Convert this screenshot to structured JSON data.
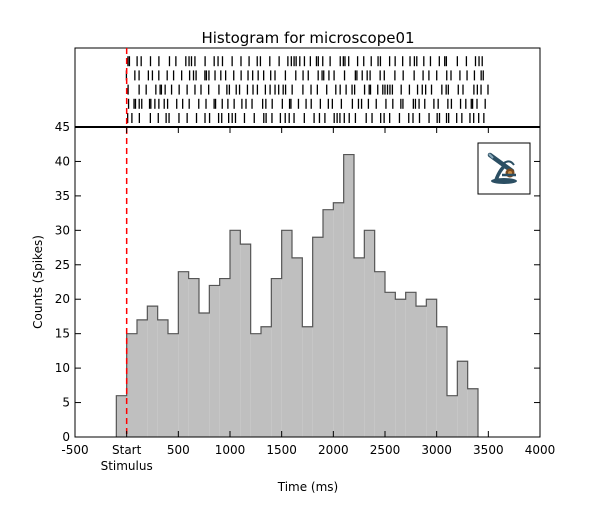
{
  "chart_data": {
    "type": "bar",
    "title": "Histogram for microscope01",
    "xlabel": "Time (ms)",
    "ylabel": "Counts (Spikes)",
    "xlim": [
      -500,
      4000
    ],
    "ylim": [
      0,
      45
    ],
    "bin_width": 100,
    "bin_starts": [
      -100,
      0,
      100,
      200,
      300,
      400,
      500,
      600,
      700,
      800,
      900,
      1000,
      1100,
      1200,
      1300,
      1400,
      1500,
      1600,
      1700,
      1800,
      1900,
      2000,
      2100,
      2200,
      2300,
      2400,
      2500,
      2600,
      2700,
      2800,
      2900,
      3000,
      3100,
      3200,
      3300
    ],
    "values": [
      6,
      15,
      17,
      19,
      17,
      15,
      24,
      23,
      18,
      22,
      23,
      30,
      28,
      15,
      16,
      23,
      30,
      26,
      16,
      29,
      33,
      34,
      41,
      26,
      30,
      24,
      21,
      20,
      21,
      19,
      20,
      16,
      6,
      11,
      7
    ],
    "x_ticks": [
      {
        "value": -500,
        "label": "-500"
      },
      {
        "value": 0,
        "label": "Start"
      },
      {
        "value": 500,
        "label": "500"
      },
      {
        "value": 1000,
        "label": "1000"
      },
      {
        "value": 1500,
        "label": "1500"
      },
      {
        "value": 2000,
        "label": "2000"
      },
      {
        "value": 2500,
        "label": "2500"
      },
      {
        "value": 3000,
        "label": "3000"
      },
      {
        "value": 3500,
        "label": "3500"
      },
      {
        "value": 4000,
        "label": "4000"
      }
    ],
    "x_tick_sublabel": "Stimulus",
    "y_ticks": [
      0,
      5,
      10,
      15,
      20,
      25,
      30,
      35,
      40,
      45
    ],
    "stimulus_time": 0,
    "raster_trials": 5,
    "raster_range_ms": [
      0,
      3400
    ],
    "colors": {
      "bars": "#bfbfbf",
      "bar_edge": "#555555",
      "stimulus_line": "#ff0000",
      "spikes": "#000000"
    },
    "inset_icon": "microscope-icon"
  }
}
